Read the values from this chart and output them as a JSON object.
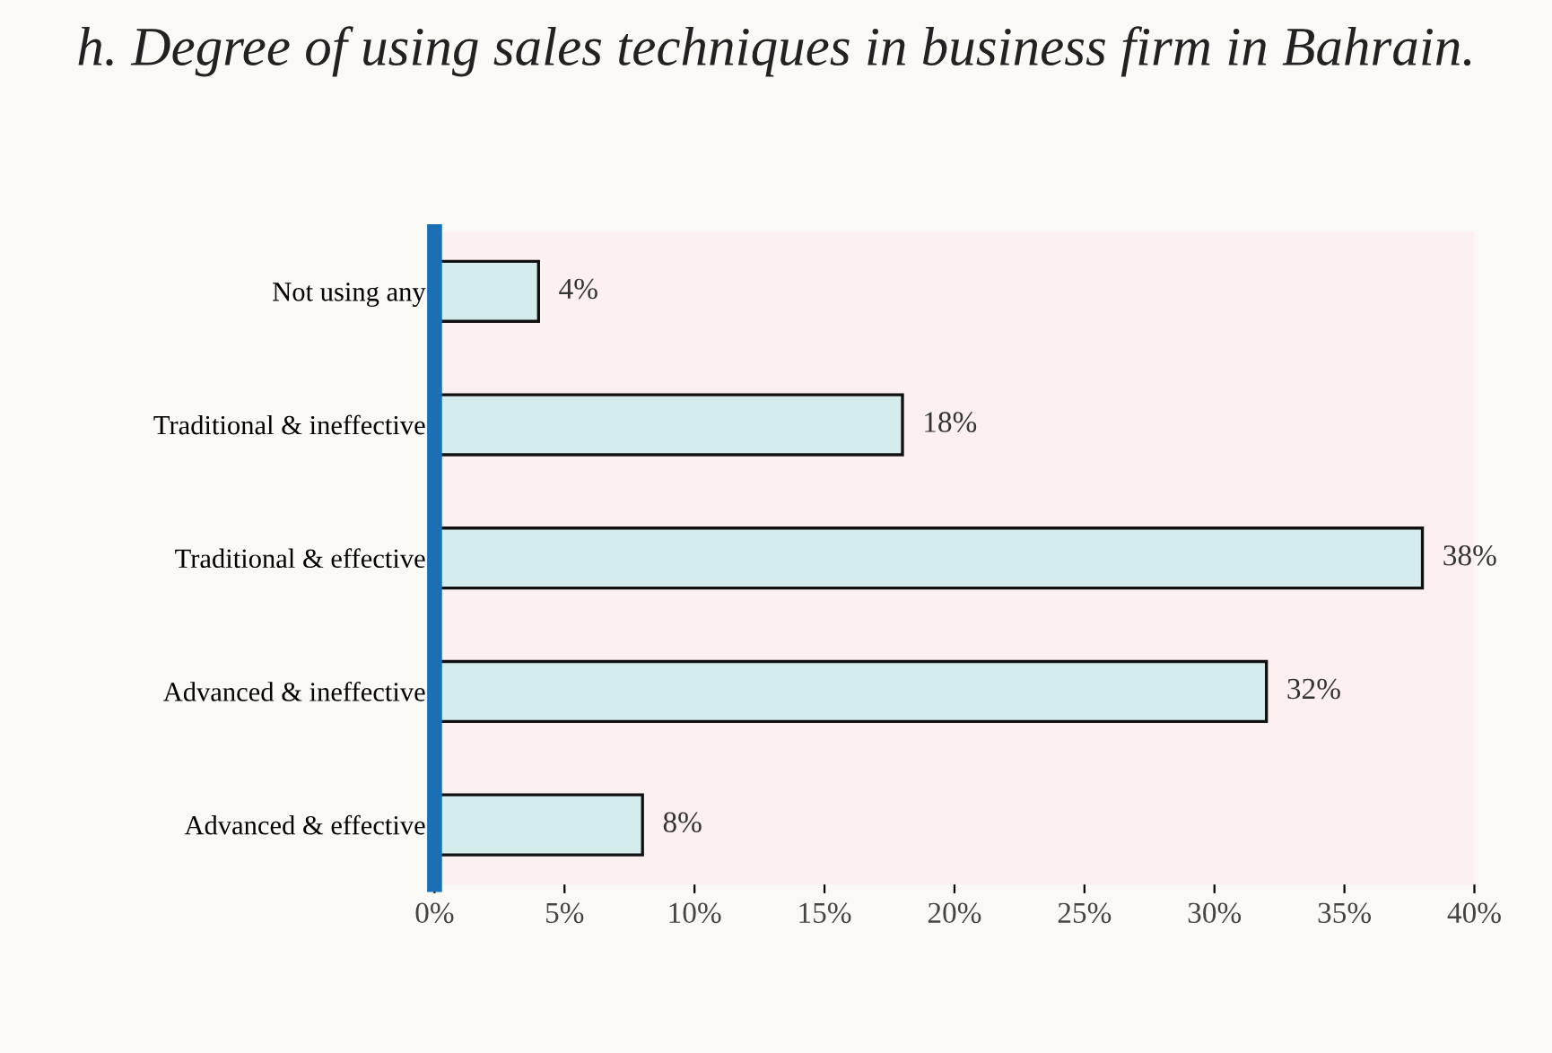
{
  "chart_data": {
    "type": "bar",
    "orientation": "horizontal",
    "title": "h. Degree of using sales techniques in business firm in Bahrain.",
    "categories": [
      "Not using any",
      "Traditional & ineffective",
      "Traditional & effective",
      "Advanced & ineffective",
      "Advanced & effective"
    ],
    "values": [
      4,
      18,
      38,
      32,
      8
    ],
    "value_labels": [
      "4%",
      "18%",
      "38%",
      "32%",
      "8%"
    ],
    "color": "#d4ecec",
    "xlim": [
      0,
      40
    ],
    "xticks": [
      {
        "value": 0,
        "label": "0%"
      },
      {
        "value": 5,
        "label": "5%"
      },
      {
        "value": 10,
        "label": "10%"
      },
      {
        "value": 15,
        "label": "15%"
      },
      {
        "value": 20,
        "label": "20%"
      },
      {
        "value": 25,
        "label": "25%"
      },
      {
        "value": 30,
        "label": "30%"
      },
      {
        "value": 35,
        "label": "35%"
      },
      {
        "value": 40,
        "label": "40%"
      }
    ],
    "grid": false,
    "legend": false
  }
}
